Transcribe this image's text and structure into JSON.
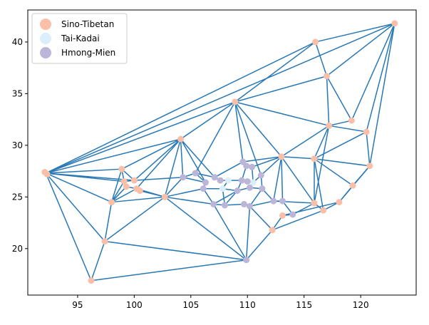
{
  "chart_data": {
    "type": "scatter",
    "subtype": "network-graph",
    "title": "",
    "xlabel": "",
    "ylabel": "",
    "xlim": [
      90.6,
      124.9
    ],
    "ylim": [
      15.5,
      43.1
    ],
    "xticks": [
      95,
      100,
      105,
      110,
      115,
      120
    ],
    "yticks": [
      20,
      25,
      30,
      35,
      40
    ],
    "grid": false,
    "legend_position": "top-left",
    "edge_color": "#2878b5",
    "series": [
      {
        "name": "Sino-Tibetan",
        "color": "#f9bfa9",
        "points": [
          [
            123.0,
            41.8
          ],
          [
            116.0,
            40.0
          ],
          [
            117.0,
            36.7
          ],
          [
            108.9,
            34.2
          ],
          [
            119.2,
            32.4
          ],
          [
            117.2,
            31.9
          ],
          [
            120.5,
            31.3
          ],
          [
            104.1,
            30.6
          ],
          [
            113.0,
            28.9
          ],
          [
            115.9,
            28.7
          ],
          [
            120.8,
            28.0
          ],
          [
            92.1,
            27.4
          ],
          [
            92.3,
            27.2
          ],
          [
            98.9,
            27.7
          ],
          [
            99.1,
            26.5
          ],
          [
            99.3,
            26.0
          ],
          [
            100.0,
            26.6
          ],
          [
            100.2,
            25.8
          ],
          [
            100.5,
            25.6
          ],
          [
            102.7,
            25.0
          ],
          [
            98.0,
            24.5
          ],
          [
            119.3,
            26.1
          ],
          [
            115.9,
            24.4
          ],
          [
            118.1,
            24.5
          ],
          [
            116.7,
            23.7
          ],
          [
            113.1,
            23.2
          ],
          [
            112.2,
            21.8
          ],
          [
            97.4,
            20.7
          ],
          [
            96.2,
            16.9
          ]
        ]
      },
      {
        "name": "Tai-Kadai",
        "color": "#dbeefb",
        "points": [
          [
            107.8,
            25.8
          ],
          [
            108.3,
            26.6
          ],
          [
            110.5,
            26.4
          ]
        ]
      },
      {
        "name": "Hmong-Mien",
        "color": "#bbb5d8",
        "points": [
          [
            104.3,
            26.9
          ],
          [
            105.4,
            27.3
          ],
          [
            106.3,
            26.4
          ],
          [
            106.1,
            25.8
          ],
          [
            107.1,
            26.9
          ],
          [
            107.6,
            26.6
          ],
          [
            109.6,
            28.4
          ],
          [
            109.9,
            28.0
          ],
          [
            110.4,
            27.9
          ],
          [
            109.5,
            26.6
          ],
          [
            110.0,
            26.5
          ],
          [
            111.2,
            27.1
          ],
          [
            111.3,
            25.8
          ],
          [
            110.2,
            25.9
          ],
          [
            109.1,
            25.6
          ],
          [
            107.0,
            24.3
          ],
          [
            108.0,
            24.2
          ],
          [
            109.7,
            24.3
          ],
          [
            110.2,
            24.1
          ],
          [
            112.3,
            24.6
          ],
          [
            113.1,
            24.6
          ],
          [
            114.0,
            23.3
          ],
          [
            109.9,
            18.9
          ]
        ]
      }
    ],
    "edges": [
      [
        [
          123.0,
          41.8
        ],
        [
          92.2,
          27.3
        ]
      ],
      [
        [
          123.0,
          41.8
        ],
        [
          116.0,
          40.0
        ]
      ],
      [
        [
          123.0,
          41.8
        ],
        [
          117.0,
          36.7
        ]
      ],
      [
        [
          123.0,
          41.8
        ],
        [
          119.2,
          32.4
        ]
      ],
      [
        [
          123.0,
          41.8
        ],
        [
          120.5,
          31.3
        ]
      ],
      [
        [
          123.0,
          41.8
        ],
        [
          120.8,
          28.0
        ]
      ],
      [
        [
          116.0,
          40.0
        ],
        [
          92.2,
          27.3
        ]
      ],
      [
        [
          116.0,
          40.0
        ],
        [
          108.9,
          34.2
        ]
      ],
      [
        [
          116.0,
          40.0
        ],
        [
          117.0,
          36.7
        ]
      ],
      [
        [
          117.0,
          36.7
        ],
        [
          108.9,
          34.2
        ]
      ],
      [
        [
          117.0,
          36.7
        ],
        [
          117.2,
          31.9
        ]
      ],
      [
        [
          117.0,
          36.7
        ],
        [
          119.2,
          32.4
        ]
      ],
      [
        [
          108.9,
          34.2
        ],
        [
          92.2,
          27.3
        ]
      ],
      [
        [
          108.9,
          34.2
        ],
        [
          104.1,
          30.6
        ]
      ],
      [
        [
          108.9,
          34.2
        ],
        [
          117.2,
          31.9
        ]
      ],
      [
        [
          108.9,
          34.2
        ],
        [
          113.0,
          28.9
        ]
      ],
      [
        [
          108.9,
          34.2
        ],
        [
          109.6,
          28.4
        ]
      ],
      [
        [
          108.9,
          34.2
        ],
        [
          105.4,
          27.3
        ]
      ],
      [
        [
          117.2,
          31.9
        ],
        [
          119.2,
          32.4
        ]
      ],
      [
        [
          117.2,
          31.9
        ],
        [
          120.5,
          31.3
        ]
      ],
      [
        [
          117.2,
          31.9
        ],
        [
          115.9,
          28.7
        ]
      ],
      [
        [
          117.2,
          31.9
        ],
        [
          113.0,
          28.9
        ]
      ],
      [
        [
          120.5,
          31.3
        ],
        [
          115.9,
          28.7
        ]
      ],
      [
        [
          120.5,
          31.3
        ],
        [
          120.8,
          28.0
        ]
      ],
      [
        [
          120.8,
          28.0
        ],
        [
          115.9,
          28.7
        ]
      ],
      [
        [
          120.8,
          28.0
        ],
        [
          119.3,
          26.1
        ]
      ],
      [
        [
          120.8,
          28.0
        ],
        [
          118.1,
          24.5
        ]
      ],
      [
        [
          104.1,
          30.6
        ],
        [
          92.2,
          27.3
        ]
      ],
      [
        [
          104.1,
          30.6
        ],
        [
          98.9,
          27.7
        ]
      ],
      [
        [
          104.1,
          30.6
        ],
        [
          100.2,
          25.8
        ]
      ],
      [
        [
          104.1,
          30.6
        ],
        [
          102.7,
          25.0
        ]
      ],
      [
        [
          104.1,
          30.6
        ],
        [
          104.3,
          26.9
        ]
      ],
      [
        [
          104.1,
          30.6
        ],
        [
          106.3,
          26.4
        ]
      ],
      [
        [
          104.1,
          30.6
        ],
        [
          107.1,
          26.9
        ]
      ],
      [
        [
          104.1,
          30.6
        ],
        [
          100.0,
          26.6
        ]
      ],
      [
        [
          92.2,
          27.3
        ],
        [
          98.9,
          27.7
        ]
      ],
      [
        [
          92.2,
          27.3
        ],
        [
          98.0,
          24.5
        ]
      ],
      [
        [
          92.2,
          27.3
        ],
        [
          99.1,
          26.5
        ]
      ],
      [
        [
          92.2,
          27.3
        ],
        [
          97.4,
          20.7
        ]
      ],
      [
        [
          92.2,
          27.3
        ],
        [
          96.2,
          16.9
        ]
      ],
      [
        [
          92.2,
          27.3
        ],
        [
          100.0,
          26.6
        ]
      ],
      [
        [
          98.9,
          27.7
        ],
        [
          98.0,
          24.5
        ]
      ],
      [
        [
          98.9,
          27.7
        ],
        [
          100.0,
          26.6
        ]
      ],
      [
        [
          98.9,
          27.7
        ],
        [
          99.1,
          26.5
        ]
      ],
      [
        [
          99.1,
          26.5
        ],
        [
          98.0,
          24.5
        ]
      ],
      [
        [
          99.3,
          26.0
        ],
        [
          98.0,
          24.5
        ]
      ],
      [
        [
          100.2,
          25.8
        ],
        [
          98.0,
          24.5
        ]
      ],
      [
        [
          100.2,
          25.8
        ],
        [
          102.7,
          25.0
        ]
      ],
      [
        [
          100.5,
          25.6
        ],
        [
          102.7,
          25.0
        ]
      ],
      [
        [
          100.0,
          26.6
        ],
        [
          104.3,
          26.9
        ]
      ],
      [
        [
          98.0,
          24.5
        ],
        [
          97.4,
          20.7
        ]
      ],
      [
        [
          98.0,
          24.5
        ],
        [
          102.7,
          25.0
        ]
      ],
      [
        [
          97.4,
          20.7
        ],
        [
          96.2,
          16.9
        ]
      ],
      [
        [
          97.4,
          20.7
        ],
        [
          102.7,
          25.0
        ]
      ],
      [
        [
          97.4,
          20.7
        ],
        [
          109.9,
          18.9
        ]
      ],
      [
        [
          96.2,
          16.9
        ],
        [
          109.9,
          18.9
        ]
      ],
      [
        [
          102.7,
          25.0
        ],
        [
          104.3,
          26.9
        ]
      ],
      [
        [
          102.7,
          25.0
        ],
        [
          106.1,
          25.8
        ]
      ],
      [
        [
          102.7,
          25.0
        ],
        [
          107.0,
          24.3
        ]
      ],
      [
        [
          102.7,
          25.0
        ],
        [
          109.9,
          18.9
        ]
      ],
      [
        [
          104.3,
          26.9
        ],
        [
          105.4,
          27.3
        ]
      ],
      [
        [
          104.3,
          26.9
        ],
        [
          106.3,
          26.4
        ]
      ],
      [
        [
          105.4,
          27.3
        ],
        [
          107.1,
          26.9
        ]
      ],
      [
        [
          105.4,
          27.3
        ],
        [
          106.3,
          26.4
        ]
      ],
      [
        [
          106.3,
          26.4
        ],
        [
          106.1,
          25.8
        ]
      ],
      [
        [
          106.1,
          25.8
        ],
        [
          107.0,
          24.3
        ]
      ],
      [
        [
          106.1,
          25.8
        ],
        [
          107.8,
          25.8
        ]
      ],
      [
        [
          107.1,
          26.9
        ],
        [
          107.6,
          26.6
        ]
      ],
      [
        [
          107.1,
          26.9
        ],
        [
          109.6,
          28.4
        ]
      ],
      [
        [
          107.6,
          26.6
        ],
        [
          108.3,
          26.6
        ]
      ],
      [
        [
          107.8,
          25.8
        ],
        [
          108.3,
          26.6
        ]
      ],
      [
        [
          107.8,
          25.8
        ],
        [
          109.1,
          25.6
        ]
      ],
      [
        [
          107.8,
          25.8
        ],
        [
          108.0,
          24.2
        ]
      ],
      [
        [
          108.3,
          26.6
        ],
        [
          109.5,
          26.6
        ]
      ],
      [
        [
          109.6,
          28.4
        ],
        [
          109.9,
          28.0
        ]
      ],
      [
        [
          109.9,
          28.0
        ],
        [
          110.4,
          27.9
        ]
      ],
      [
        [
          110.4,
          27.9
        ],
        [
          113.0,
          28.9
        ]
      ],
      [
        [
          109.6,
          28.4
        ],
        [
          113.0,
          28.9
        ]
      ],
      [
        [
          109.5,
          26.6
        ],
        [
          110.0,
          26.5
        ]
      ],
      [
        [
          110.0,
          26.5
        ],
        [
          110.5,
          26.4
        ]
      ],
      [
        [
          110.5,
          26.4
        ],
        [
          111.2,
          27.1
        ]
      ],
      [
        [
          111.2,
          27.1
        ],
        [
          113.0,
          28.9
        ]
      ],
      [
        [
          111.2,
          27.1
        ],
        [
          111.3,
          25.8
        ]
      ],
      [
        [
          111.3,
          25.8
        ],
        [
          110.2,
          25.9
        ]
      ],
      [
        [
          110.2,
          25.9
        ],
        [
          109.1,
          25.6
        ]
      ],
      [
        [
          109.1,
          25.6
        ],
        [
          108.0,
          24.2
        ]
      ],
      [
        [
          108.0,
          24.2
        ],
        [
          109.7,
          24.3
        ]
      ],
      [
        [
          109.7,
          24.3
        ],
        [
          110.2,
          24.1
        ]
      ],
      [
        [
          110.2,
          24.1
        ],
        [
          112.3,
          24.6
        ]
      ],
      [
        [
          112.3,
          24.6
        ],
        [
          113.1,
          24.6
        ]
      ],
      [
        [
          113.1,
          24.6
        ],
        [
          114.0,
          23.3
        ]
      ],
      [
        [
          114.0,
          23.3
        ],
        [
          115.9,
          24.4
        ]
      ],
      [
        [
          113.1,
          23.2
        ],
        [
          114.0,
          23.3
        ]
      ],
      [
        [
          112.2,
          21.8
        ],
        [
          113.1,
          23.2
        ]
      ],
      [
        [
          112.2,
          21.8
        ],
        [
          110.2,
          24.1
        ]
      ],
      [
        [
          112.2,
          21.8
        ],
        [
          109.9,
          18.9
        ]
      ],
      [
        [
          112.2,
          21.8
        ],
        [
          116.7,
          23.7
        ]
      ],
      [
        [
          113.1,
          23.2
        ],
        [
          118.1,
          24.5
        ]
      ],
      [
        [
          116.7,
          23.7
        ],
        [
          118.1,
          24.5
        ]
      ],
      [
        [
          115.9,
          24.4
        ],
        [
          116.7,
          23.7
        ]
      ],
      [
        [
          115.9,
          24.4
        ],
        [
          115.9,
          28.7
        ]
      ],
      [
        [
          115.9,
          24.4
        ],
        [
          113.0,
          28.9
        ]
      ],
      [
        [
          116.7,
          23.7
        ],
        [
          115.9,
          28.7
        ]
      ],
      [
        [
          118.1,
          24.5
        ],
        [
          119.3,
          26.1
        ]
      ],
      [
        [
          119.3,
          26.1
        ],
        [
          115.9,
          28.7
        ]
      ],
      [
        [
          115.9,
          28.7
        ],
        [
          113.0,
          28.9
        ]
      ],
      [
        [
          113.0,
          28.9
        ],
        [
          112.3,
          24.6
        ]
      ],
      [
        [
          113.0,
          28.9
        ],
        [
          113.1,
          24.6
        ]
      ],
      [
        [
          109.9,
          18.9
        ],
        [
          107.0,
          24.3
        ]
      ],
      [
        [
          109.9,
          18.9
        ],
        [
          110.2,
          24.1
        ]
      ],
      [
        [
          107.0,
          24.3
        ],
        [
          108.0,
          24.2
        ]
      ],
      [
        [
          107.0,
          24.3
        ],
        [
          109.1,
          25.6
        ]
      ],
      [
        [
          109.5,
          26.6
        ],
        [
          109.1,
          25.6
        ]
      ],
      [
        [
          109.9,
          28.0
        ],
        [
          109.5,
          26.6
        ]
      ],
      [
        [
          110.4,
          27.9
        ],
        [
          110.5,
          26.4
        ]
      ],
      [
        [
          112.3,
          24.6
        ],
        [
          115.9,
          24.4
        ]
      ],
      [
        [
          111.3,
          25.8
        ],
        [
          112.3,
          24.6
        ]
      ],
      [
        [
          110.2,
          24.1
        ],
        [
          111.3,
          25.8
        ]
      ],
      [
        [
          108.9,
          34.2
        ],
        [
          111.2,
          27.1
        ]
      ],
      [
        [
          117.2,
          31.9
        ],
        [
          115.9,
          24.4
        ]
      ],
      [
        [
          99.3,
          26.0
        ],
        [
          100.2,
          25.8
        ]
      ],
      [
        [
          99.1,
          26.5
        ],
        [
          100.0,
          26.6
        ]
      ]
    ]
  }
}
